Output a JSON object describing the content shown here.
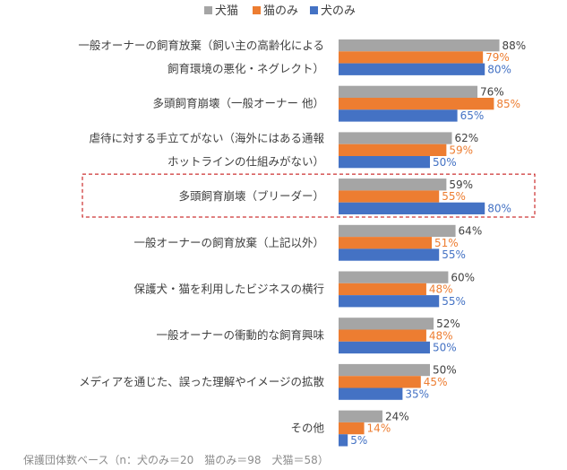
{
  "chart_data": {
    "type": "bar",
    "orientation": "horizontal",
    "categories": [
      [
        "一般オーナーの飼育放棄（飼い主の高齢化による",
        "飼育環境の悪化・ネグレクト）"
      ],
      [
        "多頭飼育崩壊（一般オーナー 他）"
      ],
      [
        "虐待に対する手立てがない（海外にはある通報",
        "ホットラインの仕組みがない）"
      ],
      [
        "多頭飼育崩壊（ブリーダー）"
      ],
      [
        "一般オーナーの飼育放棄（上記以外）"
      ],
      [
        "保護犬・猫を利用したビジネスの横行"
      ],
      [
        "一般オーナーの衝動的な飼育興味"
      ],
      [
        "メディアを通じた、誤った理解やイメージの拡散"
      ],
      [
        "その他"
      ]
    ],
    "series": [
      {
        "name": "犬猫",
        "color": "#a5a5a5",
        "label_color": "#404040",
        "values": [
          88,
          76,
          62,
          59,
          64,
          60,
          52,
          50,
          24
        ]
      },
      {
        "name": "猫のみ",
        "color": "#ed7d31",
        "label_color": "#ed7d31",
        "values": [
          79,
          85,
          59,
          55,
          51,
          48,
          48,
          45,
          14
        ]
      },
      {
        "name": "犬のみ",
        "color": "#4472c4",
        "label_color": "#4472c4",
        "values": [
          80,
          65,
          50,
          80,
          55,
          55,
          50,
          35,
          5
        ]
      }
    ],
    "value_suffix": "%",
    "highlighted_category_index": 3,
    "highlight_color": "#c00000",
    "legend_position": "top-center",
    "grid": false,
    "xlim": [
      0,
      100
    ],
    "footnote": "保護団体数ベース（n：犬のみ＝20　猫のみ＝98　犬猫＝58）"
  }
}
